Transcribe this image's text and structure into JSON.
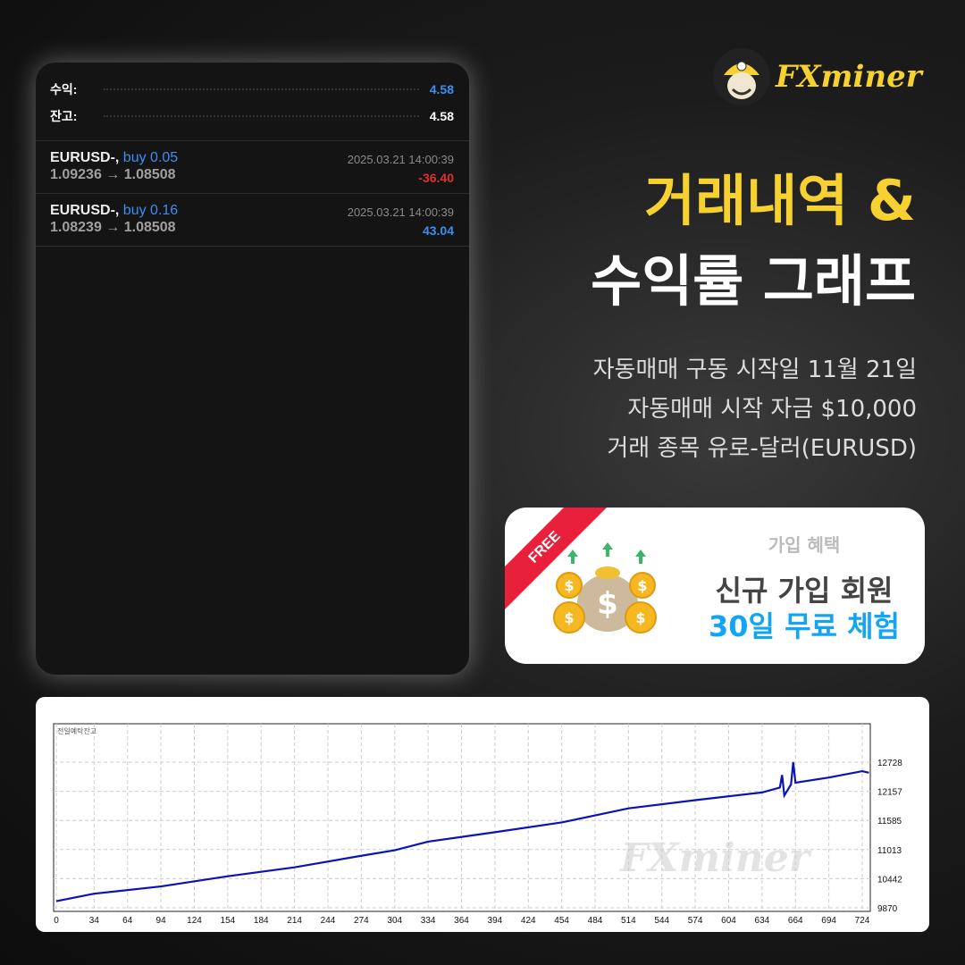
{
  "phone": {
    "summary": [
      {
        "label": "수익:",
        "value": "4.58",
        "color": "#3d8ef0"
      },
      {
        "label": "잔고:",
        "value": "4.58",
        "color": "#ffffff"
      }
    ],
    "trades": [
      {
        "symbol": "EURUSD-,",
        "side": "buy 0.05",
        "prices": "1.09236 → 1.08508",
        "datetime": "2025.03.21 14:00:39",
        "pl": "-36.40",
        "pl_color": "#e0302a"
      },
      {
        "symbol": "EURUSD-,",
        "side": "buy 0.16",
        "prices": "1.08239 → 1.08508",
        "datetime": "2025.03.21 14:00:39",
        "pl": "43.04",
        "pl_color": "#3d8ef0"
      }
    ]
  },
  "brand": {
    "logo_text": "FXminer"
  },
  "headline": {
    "line1": "거래내역 &",
    "line2": "수익률 그래프",
    "line1_color": "#f6d130"
  },
  "info": [
    "자동매매 구동 시작일 11월 21일",
    "자동매매 시작 자금 $10,000",
    "거래 종목 유로-달러(EURUSD)"
  ],
  "promo": {
    "ribbon": "FREE",
    "title": "가입 혜택",
    "line1": "신규 가입 회원",
    "line2": "30일 무료 체험",
    "accent": "#12a4f5"
  },
  "chart_data": {
    "type": "line",
    "title": "전일예탁잔고",
    "x_ticks": [
      0,
      34,
      64,
      94,
      124,
      154,
      184,
      214,
      244,
      274,
      304,
      334,
      364,
      394,
      424,
      454,
      484,
      514,
      544,
      574,
      604,
      634,
      664,
      694,
      724
    ],
    "y_ticks": [
      9870,
      10442,
      11013,
      11585,
      12157,
      12728
    ],
    "xlim": [
      0,
      735
    ],
    "ylim": [
      9800,
      12900
    ],
    "grid": true,
    "line_color": "#0a14b4",
    "series": [
      {
        "x": [
          0,
          34,
          94,
          154,
          214,
          274,
          304,
          334,
          394,
          454,
          514,
          574,
          634,
          650,
          652,
          654,
          660,
          662,
          664,
          694,
          724,
          730
        ],
        "y": [
          10000,
          10147,
          10290,
          10489,
          10665,
          10891,
          11000,
          11168,
          11354,
          11545,
          11822,
          11983,
          12134,
          12230,
          12477,
          12074,
          12290,
          12728,
          12325,
          12426,
          12551,
          12520
        ]
      }
    ]
  }
}
